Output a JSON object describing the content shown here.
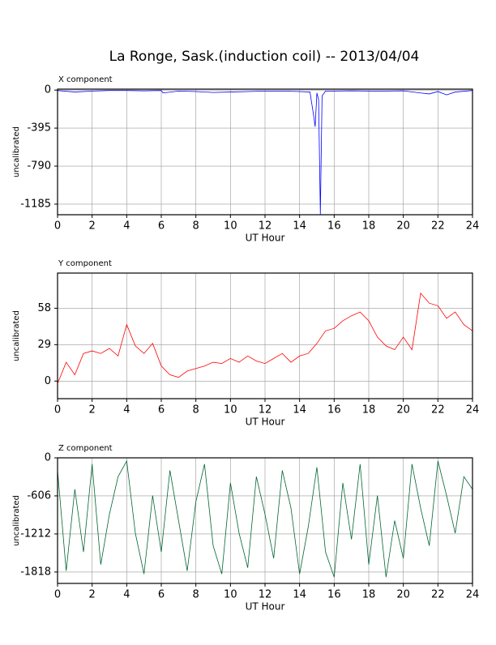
{
  "title": "La Ronge, Sask.(induction coil) -- 2013/04/04",
  "chart_data": [
    {
      "type": "line",
      "title": "X component",
      "x_label": "UT Hour",
      "y_label": "uncalibrated",
      "color": "#0000ff",
      "grid": true,
      "xlim": [
        0,
        24
      ],
      "xticks": [
        0,
        2,
        4,
        6,
        8,
        10,
        12,
        14,
        16,
        18,
        20,
        22,
        24
      ],
      "ylim": [
        -1295,
        10
      ],
      "yticks": [
        0,
        -395,
        -790,
        -1185
      ],
      "x": [
        0,
        1,
        2,
        3,
        4,
        5,
        6,
        6.1,
        7,
        8,
        9,
        10,
        11,
        12,
        13,
        14,
        14.6,
        14.8,
        14.9,
        15.0,
        15.1,
        15.2,
        15.3,
        15.5,
        16,
        17,
        18,
        19,
        20,
        21,
        21.5,
        22,
        22.5,
        23,
        24
      ],
      "values": [
        -5,
        -20,
        -10,
        -5,
        -5,
        -8,
        -5,
        -30,
        -10,
        -15,
        -25,
        -20,
        -15,
        -10,
        -10,
        -15,
        -20,
        -250,
        -380,
        -30,
        -100,
        -1290,
        -60,
        -10,
        -10,
        -8,
        -10,
        -10,
        -8,
        -30,
        -40,
        -15,
        -50,
        -20,
        -5
      ]
    },
    {
      "type": "line",
      "title": "Y component",
      "x_label": "UT Hour",
      "y_label": "uncalibrated",
      "color": "#ff0000",
      "grid": true,
      "xlim": [
        0,
        24
      ],
      "xticks": [
        0,
        2,
        4,
        6,
        8,
        10,
        12,
        14,
        16,
        18,
        20,
        22,
        24
      ],
      "ylim": [
        -14,
        86
      ],
      "yticks": [
        0,
        29,
        58
      ],
      "x": [
        0,
        0.5,
        1,
        1.5,
        2,
        2.5,
        3,
        3.5,
        4,
        4.5,
        5,
        5.5,
        6,
        6.5,
        7,
        7.5,
        8,
        8.5,
        9,
        9.5,
        10,
        10.5,
        11,
        11.5,
        12,
        12.5,
        13,
        13.5,
        14,
        14.5,
        15,
        15.5,
        16,
        16.5,
        17,
        17.5,
        18,
        18.5,
        19,
        19.5,
        20,
        20.5,
        21,
        21.5,
        22,
        22.5,
        23,
        23.5,
        24
      ],
      "values": [
        -2,
        15,
        5,
        22,
        24,
        22,
        26,
        20,
        45,
        28,
        22,
        30,
        12,
        5,
        3,
        8,
        10,
        12,
        15,
        14,
        18,
        15,
        20,
        16,
        14,
        18,
        22,
        15,
        20,
        22,
        30,
        40,
        42,
        48,
        52,
        55,
        48,
        35,
        28,
        25,
        35,
        25,
        70,
        62,
        60,
        50,
        55,
        45,
        40
      ]
    },
    {
      "type": "line",
      "title": "Z component",
      "x_label": "UT Hour",
      "y_label": "uncalibrated",
      "color": "#006633",
      "grid": true,
      "xlim": [
        0,
        24
      ],
      "xticks": [
        0,
        2,
        4,
        6,
        8,
        10,
        12,
        14,
        16,
        18,
        20,
        22,
        24
      ],
      "ylim": [
        -2000,
        0
      ],
      "yticks": [
        0,
        -606,
        -1212,
        -1818
      ],
      "x": [
        0,
        0.5,
        1,
        1.5,
        2,
        2.5,
        3,
        3.5,
        4,
        4.5,
        5,
        5.5,
        6,
        6.5,
        7,
        7.5,
        8,
        8.5,
        9,
        9.5,
        10,
        10.5,
        11,
        11.5,
        12,
        12.5,
        13,
        13.5,
        14,
        14.5,
        15,
        15.5,
        16,
        16.5,
        17,
        17.5,
        18,
        18.5,
        19,
        19.5,
        20,
        20.5,
        21,
        21.5,
        22,
        22.5,
        23,
        23.5,
        24
      ],
      "values": [
        -200,
        -1800,
        -500,
        -1500,
        -100,
        -1700,
        -900,
        -300,
        -50,
        -1200,
        -1850,
        -600,
        -1500,
        -200,
        -1000,
        -1800,
        -700,
        -100,
        -1400,
        -1850,
        -400,
        -1200,
        -1750,
        -300,
        -900,
        -1600,
        -200,
        -800,
        -1850,
        -1100,
        -150,
        -1500,
        -1900,
        -400,
        -1300,
        -100,
        -1700,
        -600,
        -1900,
        -1000,
        -1600,
        -100,
        -800,
        -1400,
        -50,
        -600,
        -1200,
        -300,
        -500
      ]
    }
  ]
}
